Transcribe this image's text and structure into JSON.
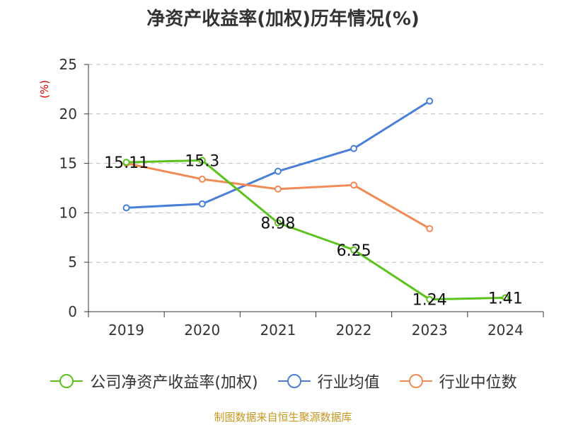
{
  "chart_data": {
    "type": "line",
    "title": "净资产收益率(加权)历年情况(%)",
    "ylabel": "(%)",
    "xlabel": "",
    "categories": [
      "2019",
      "2020",
      "2021",
      "2022",
      "2023",
      "2024"
    ],
    "ylim": [
      0,
      25
    ],
    "yticks": [
      0,
      5,
      10,
      15,
      20,
      25
    ],
    "grid": "horizontal-dashed",
    "legend_position": "bottom",
    "series": [
      {
        "name": "公司净资产收益率(加权)",
        "color": "#5cc21c",
        "values": [
          15.11,
          15.3,
          8.98,
          6.25,
          1.24,
          1.41
        ],
        "labels": [
          "15.11",
          "15.3",
          "8.98",
          "6.25",
          "1.24",
          "1.41"
        ]
      },
      {
        "name": "行业均值",
        "color": "#4a7fd8",
        "values": [
          10.5,
          10.9,
          14.2,
          16.5,
          21.3,
          null
        ]
      },
      {
        "name": "行业中位数",
        "color": "#f08b55",
        "values": [
          15.0,
          13.4,
          12.4,
          12.8,
          8.4,
          null
        ]
      }
    ]
  },
  "source": "制图数据来自恒生聚源数据库",
  "colors": {
    "axis": "#333333",
    "grid": "#bbbbbb",
    "ylabel": "#e00000",
    "source": "#c8961e"
  }
}
